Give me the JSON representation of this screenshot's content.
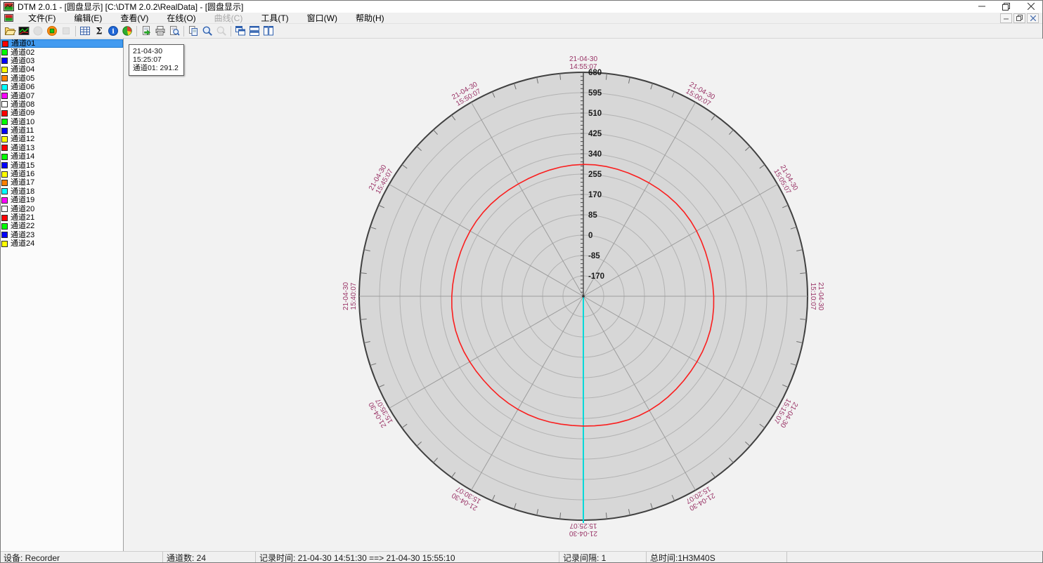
{
  "window": {
    "title": "DTM 2.0.1 - [圆盘显示] [C:\\DTM 2.0.2\\RealData] - [圆盘显示]",
    "control_icons": [
      "minimize-icon",
      "restore-icon",
      "close-icon"
    ]
  },
  "menu": {
    "items": [
      {
        "label": "文件(F)",
        "enabled": true
      },
      {
        "label": "编辑(E)",
        "enabled": true
      },
      {
        "label": "查看(V)",
        "enabled": true
      },
      {
        "label": "在线(O)",
        "enabled": true
      },
      {
        "label": "曲线(C)",
        "enabled": false
      },
      {
        "label": "工具(T)",
        "enabled": true
      },
      {
        "label": "窗口(W)",
        "enabled": true
      },
      {
        "label": "帮助(H)",
        "enabled": true
      }
    ],
    "mdi_control_icons": [
      "minimize-icon",
      "restore-icon",
      "close-icon"
    ]
  },
  "toolbar": {
    "items": [
      {
        "type": "icon",
        "name": "open-file-icon",
        "enabled": true
      },
      {
        "type": "icon",
        "name": "realtime-curve-icon",
        "enabled": true
      },
      {
        "type": "icon",
        "name": "record-idle-icon",
        "enabled": false
      },
      {
        "type": "icon",
        "name": "record-icon",
        "enabled": true
      },
      {
        "type": "icon",
        "name": "stop-icon",
        "enabled": false
      },
      {
        "type": "separator"
      },
      {
        "type": "icon",
        "name": "data-table-icon",
        "enabled": true
      },
      {
        "type": "icon",
        "name": "sum-icon",
        "enabled": true
      },
      {
        "type": "icon",
        "name": "info-icon",
        "enabled": true
      },
      {
        "type": "icon",
        "name": "pie-chart-icon",
        "enabled": true
      },
      {
        "type": "separator"
      },
      {
        "type": "icon",
        "name": "export-icon",
        "enabled": true
      },
      {
        "type": "icon",
        "name": "print-icon",
        "enabled": true
      },
      {
        "type": "icon",
        "name": "print-preview-icon",
        "enabled": true
      },
      {
        "type": "separator"
      },
      {
        "type": "icon",
        "name": "copy-icon",
        "enabled": true
      },
      {
        "type": "icon",
        "name": "zoom-icon",
        "enabled": true
      },
      {
        "type": "icon",
        "name": "zoom-disabled-icon",
        "enabled": false
      },
      {
        "type": "separator"
      },
      {
        "type": "icon",
        "name": "cascade-windows-icon",
        "enabled": true
      },
      {
        "type": "icon",
        "name": "tile-horizontal-icon",
        "enabled": true
      },
      {
        "type": "icon",
        "name": "tile-vertical-icon",
        "enabled": true
      }
    ]
  },
  "sidebar": {
    "channels": [
      {
        "label": "通道01",
        "color": "#ff0000",
        "selected": true
      },
      {
        "label": "通道02",
        "color": "#00ff00",
        "selected": false
      },
      {
        "label": "通道03",
        "color": "#0000ff",
        "selected": false
      },
      {
        "label": "通道04",
        "color": "#ffff00",
        "selected": false
      },
      {
        "label": "通道05",
        "color": "#ff8000",
        "selected": false
      },
      {
        "label": "通道06",
        "color": "#00ffff",
        "selected": false
      },
      {
        "label": "通道07",
        "color": "#ff00ff",
        "selected": false
      },
      {
        "label": "通道08",
        "color": "#ffffff",
        "selected": false
      },
      {
        "label": "通道09",
        "color": "#ff0000",
        "selected": false
      },
      {
        "label": "通道10",
        "color": "#00ff00",
        "selected": false
      },
      {
        "label": "通道11",
        "color": "#0000ff",
        "selected": false
      },
      {
        "label": "通道12",
        "color": "#ffff00",
        "selected": false
      },
      {
        "label": "通道13",
        "color": "#ff0000",
        "selected": false
      },
      {
        "label": "通道14",
        "color": "#00ff00",
        "selected": false
      },
      {
        "label": "通道15",
        "color": "#0000ff",
        "selected": false
      },
      {
        "label": "通道16",
        "color": "#ffff00",
        "selected": false
      },
      {
        "label": "通道17",
        "color": "#ff8000",
        "selected": false
      },
      {
        "label": "通道18",
        "color": "#00ffff",
        "selected": false
      },
      {
        "label": "通道19",
        "color": "#ff00ff",
        "selected": false
      },
      {
        "label": "通道20",
        "color": "#ffffff",
        "selected": false
      },
      {
        "label": "通道21",
        "color": "#ff0000",
        "selected": false
      },
      {
        "label": "通道22",
        "color": "#00ff00",
        "selected": false
      },
      {
        "label": "通道23",
        "color": "#0000ff",
        "selected": false
      },
      {
        "label": "通道24",
        "color": "#ffff00",
        "selected": false
      }
    ]
  },
  "tooltip": {
    "date": "21-04-30",
    "time": "15:25:07",
    "value_line": "通道01: 291.2"
  },
  "chart_data": {
    "type": "line",
    "projection": "polar-disc",
    "title": "圆盘显示",
    "radial_axis": {
      "min": -255,
      "max": 680,
      "step": 85,
      "minor_step": 17,
      "tick_labels": [
        "680",
        "595",
        "510",
        "425",
        "340",
        "255",
        "170",
        "85",
        "0",
        "-85",
        "-170"
      ]
    },
    "minutes_per_revolution": 60,
    "major_angle_step_deg": 30,
    "minor_tick_deg": 6,
    "time_labels": [
      {
        "angle_deg": 0,
        "date": "21-04-30",
        "time": "14:55:07"
      },
      {
        "angle_deg": 30,
        "date": "21-04-30",
        "time": "15:00:07"
      },
      {
        "angle_deg": 60,
        "date": "21-04-30",
        "time": "15:05:07"
      },
      {
        "angle_deg": 90,
        "date": "21-04-30",
        "time": "15:10:07"
      },
      {
        "angle_deg": 120,
        "date": "21-04-30",
        "time": "15:15:07"
      },
      {
        "angle_deg": 150,
        "date": "21-04-30",
        "time": "15:20:07"
      },
      {
        "angle_deg": 180,
        "date": "21-04-30",
        "time": "15:25:07"
      },
      {
        "angle_deg": 210,
        "date": "21-04-30",
        "time": "15:30:07"
      },
      {
        "angle_deg": 240,
        "date": "21-04-30",
        "time": "15:35:07"
      },
      {
        "angle_deg": 270,
        "date": "21-04-30",
        "time": "15:40:07"
      },
      {
        "angle_deg": 300,
        "date": "21-04-30",
        "time": "15:45:07"
      },
      {
        "angle_deg": 330,
        "date": "21-04-30",
        "time": "15:50:07"
      }
    ],
    "series": [
      {
        "name": "通道01",
        "color": "#fa1e1e",
        "value": 291.2,
        "shape": "near-constant-circle"
      }
    ],
    "cursor": {
      "angle_deg": 180,
      "time": "15:25:07",
      "color": "#00d9d9"
    },
    "colors": {
      "disc_fill": "#d7d7d7",
      "rim": "#404040",
      "grid_circle": "#b2b2b2",
      "spoke": "#9c9c9c",
      "axis": "#4a4a4a",
      "time_label": "#993366",
      "axis_label": "#1c1c1c"
    }
  },
  "statusbar": {
    "fields": [
      "设备: Recorder",
      "通道数: 24",
      "记录时间: 21-04-30 14:51:30 ==> 21-04-30 15:55:10",
      "记录间隔: 1",
      "总时间:1H3M40S"
    ]
  }
}
